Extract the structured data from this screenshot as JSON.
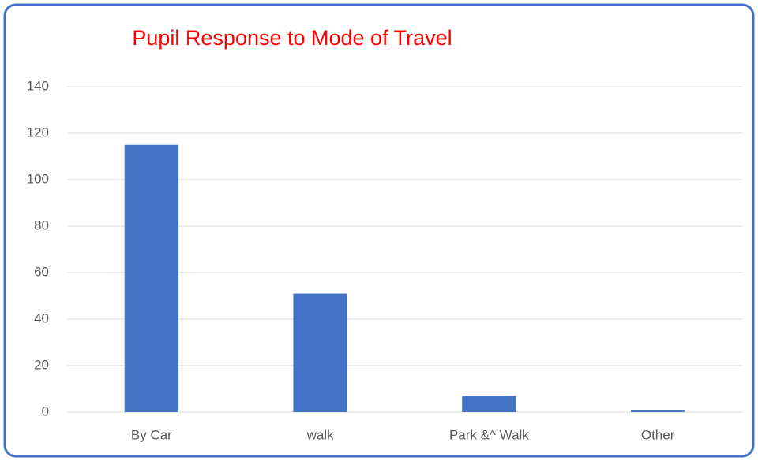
{
  "chart_data": {
    "type": "bar",
    "title": "Pupil Response to Mode of Travel",
    "categories": [
      "By Car",
      "walk",
      "Park &^ Walk",
      "Other"
    ],
    "values": [
      115,
      51,
      7,
      1
    ],
    "color": "#4472c4",
    "ylim": [
      0,
      140
    ],
    "yticks": [
      0,
      20,
      40,
      60,
      80,
      100,
      120,
      140
    ],
    "grid": true
  }
}
